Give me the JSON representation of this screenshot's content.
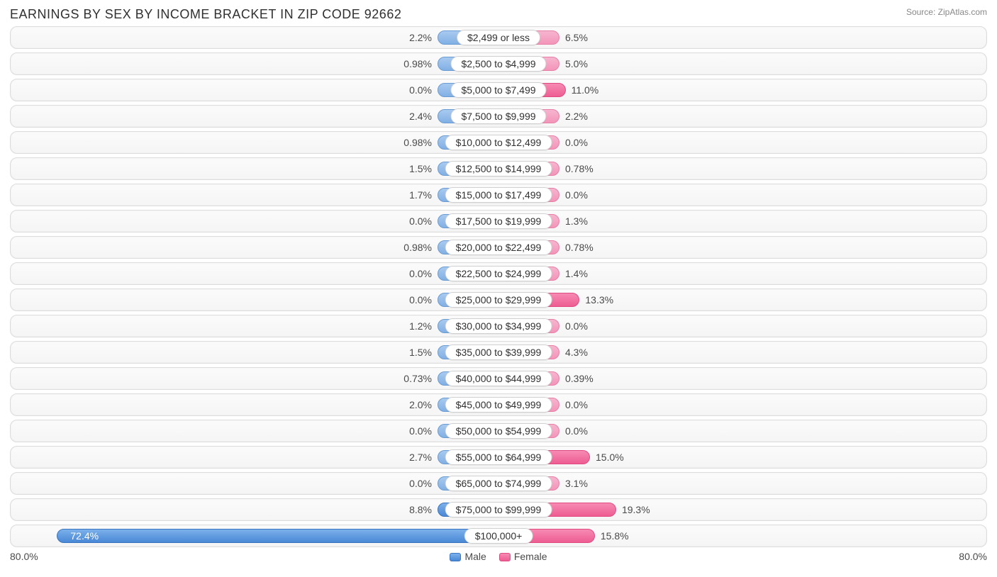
{
  "title": "EARNINGS BY SEX BY INCOME BRACKET IN ZIP CODE 92662",
  "source": "Source: ZipAtlas.com",
  "axis_max_pct": 80.0,
  "axis_label_left": "80.0%",
  "axis_label_right": "80.0%",
  "min_bar_pct": 10.0,
  "strong_threshold": 8.0,
  "legend": {
    "male": "Male",
    "female": "Female"
  },
  "colors": {
    "male_light": "#82b0e4",
    "male_strong": "#4a88d6",
    "female_light": "#f395b9",
    "female_strong": "#ee5d92",
    "row_border": "#dcdcdc",
    "text": "#4a4a4a",
    "title": "#303030",
    "background": "#ffffff"
  },
  "rows": [
    {
      "label": "$2,499 or less",
      "male": 2.2,
      "male_txt": "2.2%",
      "female": 6.5,
      "female_txt": "6.5%"
    },
    {
      "label": "$2,500 to $4,999",
      "male": 0.98,
      "male_txt": "0.98%",
      "female": 5.0,
      "female_txt": "5.0%"
    },
    {
      "label": "$5,000 to $7,499",
      "male": 0.0,
      "male_txt": "0.0%",
      "female": 11.0,
      "female_txt": "11.0%"
    },
    {
      "label": "$7,500 to $9,999",
      "male": 2.4,
      "male_txt": "2.4%",
      "female": 2.2,
      "female_txt": "2.2%"
    },
    {
      "label": "$10,000 to $12,499",
      "male": 0.98,
      "male_txt": "0.98%",
      "female": 0.0,
      "female_txt": "0.0%"
    },
    {
      "label": "$12,500 to $14,999",
      "male": 1.5,
      "male_txt": "1.5%",
      "female": 0.78,
      "female_txt": "0.78%"
    },
    {
      "label": "$15,000 to $17,499",
      "male": 1.7,
      "male_txt": "1.7%",
      "female": 0.0,
      "female_txt": "0.0%"
    },
    {
      "label": "$17,500 to $19,999",
      "male": 0.0,
      "male_txt": "0.0%",
      "female": 1.3,
      "female_txt": "1.3%"
    },
    {
      "label": "$20,000 to $22,499",
      "male": 0.98,
      "male_txt": "0.98%",
      "female": 0.78,
      "female_txt": "0.78%"
    },
    {
      "label": "$22,500 to $24,999",
      "male": 0.0,
      "male_txt": "0.0%",
      "female": 1.4,
      "female_txt": "1.4%"
    },
    {
      "label": "$25,000 to $29,999",
      "male": 0.0,
      "male_txt": "0.0%",
      "female": 13.3,
      "female_txt": "13.3%"
    },
    {
      "label": "$30,000 to $34,999",
      "male": 1.2,
      "male_txt": "1.2%",
      "female": 0.0,
      "female_txt": "0.0%"
    },
    {
      "label": "$35,000 to $39,999",
      "male": 1.5,
      "male_txt": "1.5%",
      "female": 4.3,
      "female_txt": "4.3%"
    },
    {
      "label": "$40,000 to $44,999",
      "male": 0.73,
      "male_txt": "0.73%",
      "female": 0.39,
      "female_txt": "0.39%"
    },
    {
      "label": "$45,000 to $49,999",
      "male": 2.0,
      "male_txt": "2.0%",
      "female": 0.0,
      "female_txt": "0.0%"
    },
    {
      "label": "$50,000 to $54,999",
      "male": 0.0,
      "male_txt": "0.0%",
      "female": 0.0,
      "female_txt": "0.0%"
    },
    {
      "label": "$55,000 to $64,999",
      "male": 2.7,
      "male_txt": "2.7%",
      "female": 15.0,
      "female_txt": "15.0%"
    },
    {
      "label": "$65,000 to $74,999",
      "male": 0.0,
      "male_txt": "0.0%",
      "female": 3.1,
      "female_txt": "3.1%"
    },
    {
      "label": "$75,000 to $99,999",
      "male": 8.8,
      "male_txt": "8.8%",
      "female": 19.3,
      "female_txt": "19.3%"
    },
    {
      "label": "$100,000+",
      "male": 72.4,
      "male_txt": "72.4%",
      "female": 15.8,
      "female_txt": "15.8%"
    }
  ]
}
